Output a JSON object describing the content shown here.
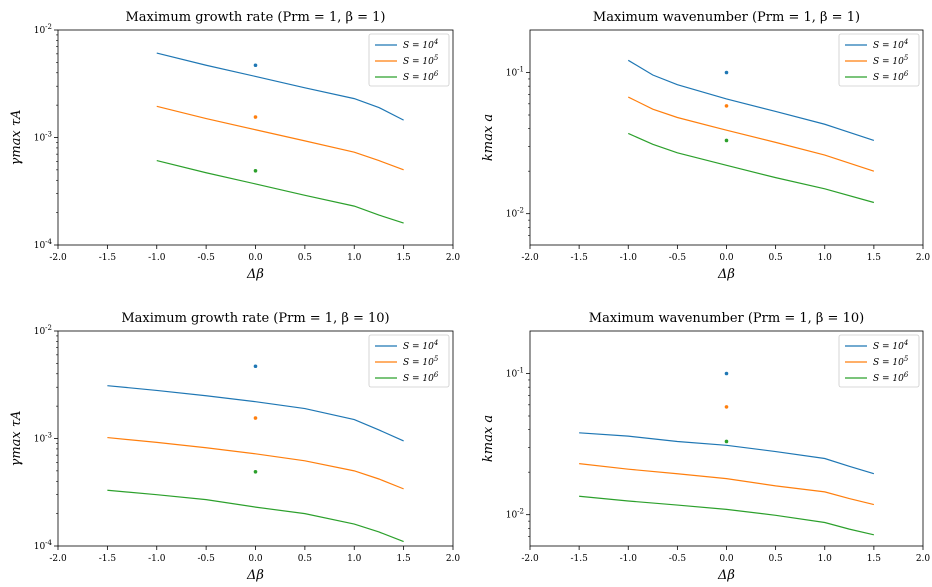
{
  "chart_data": [
    {
      "type": "line",
      "title": "Maximum growth rate (Prm = 1, β = 1)",
      "xlabel": "Δβ",
      "ylabel": "γmax τA",
      "yscale": "log",
      "xlim": [
        -2.0,
        2.0
      ],
      "ylim": [
        0.0001,
        0.01
      ],
      "xticks": [
        "-2.0",
        "-1.5",
        "-1.0",
        "-0.5",
        "0.0",
        "0.5",
        "1.0",
        "1.5",
        "2.0"
      ],
      "yticks": [
        "10^-4",
        "10^-3",
        "10^-2"
      ],
      "legend_position": "top-right",
      "series": [
        {
          "name": "S = 10^4",
          "color": "#1f77b4",
          "x": [
            -1.0,
            -0.5,
            0.0,
            0.5,
            1.0,
            1.25,
            1.5
          ],
          "y": [
            0.0061,
            0.0047,
            0.0037,
            0.0029,
            0.0023,
            0.0019,
            0.00145
          ],
          "point": [
            0.0,
            0.0047
          ]
        },
        {
          "name": "S = 10^5",
          "color": "#ff7f0e",
          "x": [
            -1.0,
            -0.5,
            0.0,
            0.5,
            1.0,
            1.25,
            1.5
          ],
          "y": [
            0.00195,
            0.0015,
            0.00118,
            0.00093,
            0.00073,
            0.00061,
            0.0005
          ],
          "point": [
            0.0,
            0.00155
          ]
        },
        {
          "name": "S = 10^6",
          "color": "#2ca02c",
          "x": [
            -1.0,
            -0.5,
            0.0,
            0.5,
            1.0,
            1.25,
            1.5
          ],
          "y": [
            0.00061,
            0.00047,
            0.00037,
            0.00029,
            0.00023,
            0.00019,
            0.00016
          ],
          "point": [
            0.0,
            0.00049
          ]
        }
      ]
    },
    {
      "type": "line",
      "title": "Maximum wavenumber (Prm = 1, β = 1)",
      "xlabel": "Δβ",
      "ylabel": "kmax a",
      "yscale": "log",
      "xlim": [
        -2.0,
        2.0
      ],
      "ylim": [
        0.006,
        0.2
      ],
      "xticks": [
        "-2.0",
        "-1.5",
        "-1.0",
        "-0.5",
        "0.0",
        "0.5",
        "1.0",
        "1.5",
        "2.0"
      ],
      "yticks": [
        "10^-2",
        "10^-1"
      ],
      "legend_position": "top-right",
      "series": [
        {
          "name": "S = 10^4",
          "color": "#1f77b4",
          "x": [
            -1.0,
            -0.75,
            -0.5,
            0.0,
            0.5,
            1.0,
            1.5
          ],
          "y": [
            0.122,
            0.096,
            0.082,
            0.065,
            0.053,
            0.043,
            0.033
          ],
          "point": [
            0.0,
            0.1
          ]
        },
        {
          "name": "S = 10^5",
          "color": "#ff7f0e",
          "x": [
            -1.0,
            -0.75,
            -0.5,
            0.0,
            0.5,
            1.0,
            1.5
          ],
          "y": [
            0.067,
            0.055,
            0.048,
            0.039,
            0.032,
            0.026,
            0.02
          ],
          "point": [
            0.0,
            0.058
          ]
        },
        {
          "name": "S = 10^6",
          "color": "#2ca02c",
          "x": [
            -1.0,
            -0.75,
            -0.5,
            0.0,
            0.5,
            1.0,
            1.5
          ],
          "y": [
            0.037,
            0.031,
            0.027,
            0.022,
            0.018,
            0.015,
            0.012
          ],
          "point": [
            0.0,
            0.033
          ]
        }
      ]
    },
    {
      "type": "line",
      "title": "Maximum growth rate (Prm = 1, β = 10)",
      "xlabel": "Δβ",
      "ylabel": "γmax τA",
      "yscale": "log",
      "xlim": [
        -2.0,
        2.0
      ],
      "ylim": [
        0.0001,
        0.01
      ],
      "xticks": [
        "-2.0",
        "-1.5",
        "-1.0",
        "-0.5",
        "0.0",
        "0.5",
        "1.0",
        "1.5",
        "2.0"
      ],
      "yticks": [
        "10^-4",
        "10^-3",
        "10^-2"
      ],
      "legend_position": "top-right",
      "series": [
        {
          "name": "S = 10^4",
          "color": "#1f77b4",
          "x": [
            -1.5,
            -1.0,
            -0.5,
            0.0,
            0.5,
            1.0,
            1.25,
            1.5
          ],
          "y": [
            0.0031,
            0.0028,
            0.0025,
            0.0022,
            0.0019,
            0.0015,
            0.0012,
            0.00095
          ],
          "point": [
            0.0,
            0.0047
          ]
        },
        {
          "name": "S = 10^5",
          "color": "#ff7f0e",
          "x": [
            -1.5,
            -1.0,
            -0.5,
            0.0,
            0.5,
            1.0,
            1.25,
            1.5
          ],
          "y": [
            0.00102,
            0.00092,
            0.00082,
            0.00072,
            0.00062,
            0.0005,
            0.00042,
            0.00034
          ],
          "point": [
            0.0,
            0.00155
          ]
        },
        {
          "name": "S = 10^6",
          "color": "#2ca02c",
          "x": [
            -1.5,
            -1.0,
            -0.5,
            0.0,
            0.5,
            1.0,
            1.25,
            1.5
          ],
          "y": [
            0.00033,
            0.0003,
            0.00027,
            0.00023,
            0.0002,
            0.00016,
            0.000135,
            0.00011
          ],
          "point": [
            0.0,
            0.00049
          ]
        }
      ]
    },
    {
      "type": "line",
      "title": "Maximum wavenumber (Prm = 1, β = 10)",
      "xlabel": "Δβ",
      "ylabel": "kmax a",
      "yscale": "log",
      "xlim": [
        -2.0,
        2.0
      ],
      "ylim": [
        0.006,
        0.2
      ],
      "xticks": [
        "-2.0",
        "-1.5",
        "-1.0",
        "-0.5",
        "0.0",
        "0.5",
        "1.0",
        "1.5",
        "2.0"
      ],
      "yticks": [
        "10^-2",
        "10^-1"
      ],
      "legend_position": "top-right",
      "series": [
        {
          "name": "S = 10^4",
          "color": "#1f77b4",
          "x": [
            -1.5,
            -1.0,
            -0.5,
            0.0,
            0.5,
            1.0,
            1.25,
            1.5
          ],
          "y": [
            0.038,
            0.036,
            0.033,
            0.031,
            0.028,
            0.025,
            0.022,
            0.0195
          ],
          "point": [
            0.0,
            0.1
          ]
        },
        {
          "name": "S = 10^5",
          "color": "#ff7f0e",
          "x": [
            -1.5,
            -1.0,
            -0.5,
            0.0,
            0.5,
            1.0,
            1.25,
            1.5
          ],
          "y": [
            0.023,
            0.021,
            0.0195,
            0.018,
            0.016,
            0.0145,
            0.013,
            0.0118
          ],
          "point": [
            0.0,
            0.058
          ]
        },
        {
          "name": "S = 10^6",
          "color": "#2ca02c",
          "x": [
            -1.5,
            -1.0,
            -0.5,
            0.0,
            0.5,
            1.0,
            1.25,
            1.5
          ],
          "y": [
            0.0135,
            0.0125,
            0.0117,
            0.0109,
            0.0099,
            0.0088,
            0.0079,
            0.0072
          ],
          "point": [
            0.0,
            0.033
          ]
        }
      ]
    }
  ]
}
